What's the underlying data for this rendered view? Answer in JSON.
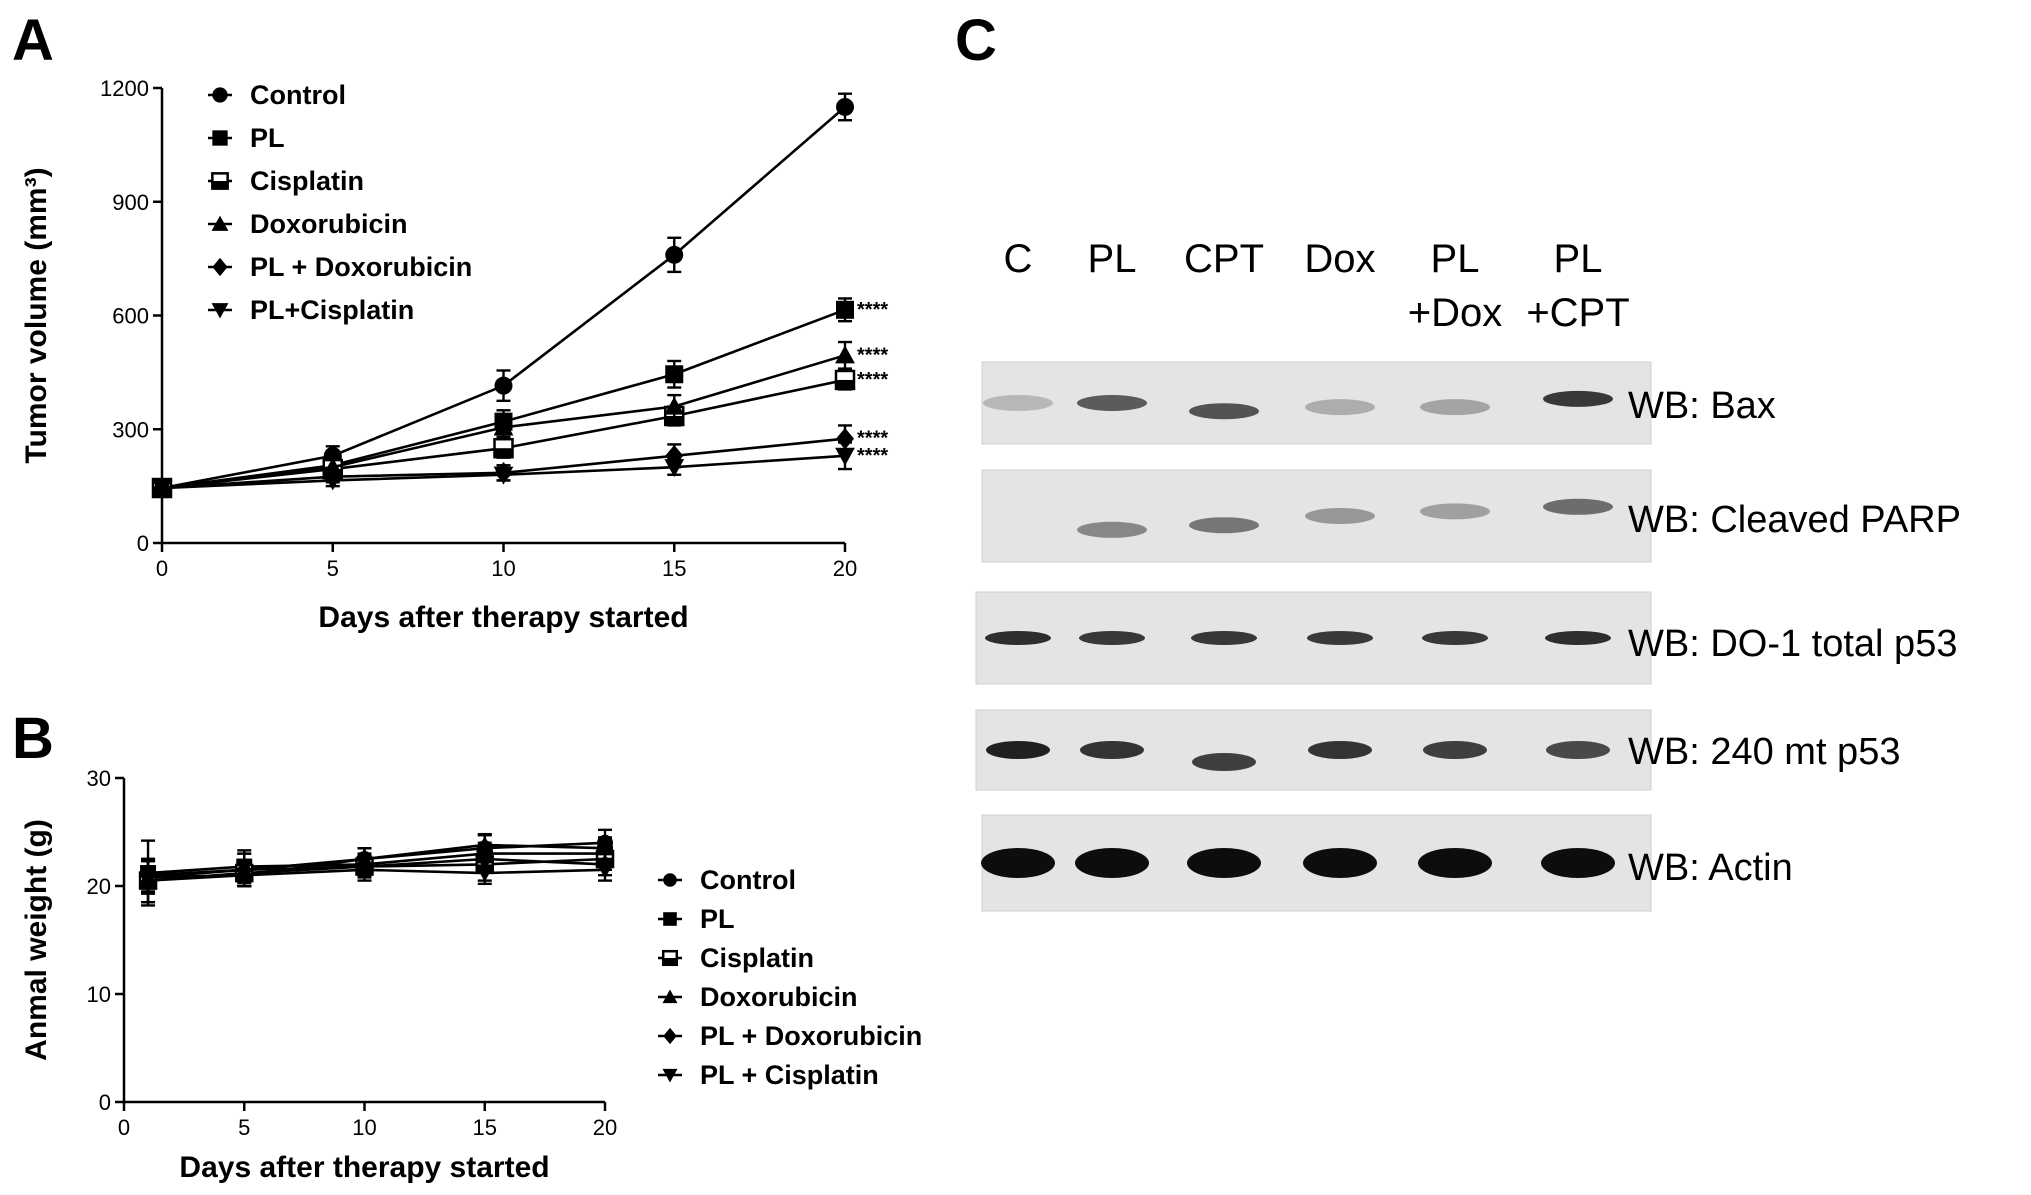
{
  "chart_data": [
    {
      "panel": "A",
      "type": "line",
      "xlabel": "Days after therapy started",
      "ylabel": "Tumor volume (mm³)",
      "xlim": [
        0,
        20
      ],
      "ylim": [
        0,
        1200
      ],
      "xticks": [
        0,
        5,
        10,
        15,
        20
      ],
      "yticks": [
        0,
        300,
        600,
        900,
        1200
      ],
      "x": [
        0,
        5,
        10,
        15,
        20
      ],
      "legend_position": "top-left",
      "series": [
        {
          "name": "Control",
          "marker": "circle",
          "values": [
            145,
            230,
            415,
            760,
            1150
          ],
          "errors": [
            15,
            25,
            40,
            45,
            35
          ],
          "significance": ""
        },
        {
          "name": "PL",
          "marker": "square",
          "values": [
            145,
            205,
            320,
            445,
            615
          ],
          "errors": [
            15,
            20,
            30,
            35,
            30
          ],
          "significance": "****"
        },
        {
          "name": "Cisplatin",
          "marker": "square-half",
          "values": [
            145,
            195,
            250,
            335,
            430
          ],
          "errors": [
            15,
            20,
            25,
            25,
            25
          ],
          "significance": "****"
        },
        {
          "name": "Doxorubicin",
          "marker": "triangle",
          "values": [
            145,
            200,
            305,
            360,
            495
          ],
          "errors": [
            15,
            20,
            25,
            30,
            35
          ],
          "significance": "****"
        },
        {
          "name": "PL + Doxorubicin",
          "marker": "diamond",
          "values": [
            145,
            175,
            185,
            230,
            275
          ],
          "errors": [
            15,
            15,
            20,
            30,
            35
          ],
          "significance": "****"
        },
        {
          "name": "PL+Cisplatin",
          "marker": "triangle-down",
          "values": [
            145,
            165,
            180,
            200,
            230
          ],
          "errors": [
            15,
            15,
            15,
            20,
            35
          ],
          "significance": "****"
        }
      ]
    },
    {
      "panel": "B",
      "type": "line",
      "xlabel": "Days after therapy started",
      "ylabel": "Anmal weight (g)",
      "xlim": [
        0,
        20
      ],
      "ylim": [
        0,
        30
      ],
      "xticks": [
        0,
        5,
        10,
        15,
        20
      ],
      "yticks": [
        0,
        10,
        20,
        30
      ],
      "x": [
        1,
        5,
        10,
        15,
        20
      ],
      "legend_position": "right",
      "series": [
        {
          "name": "Control",
          "marker": "circle",
          "values": [
            20.8,
            21.5,
            22.5,
            23.5,
            24.0
          ],
          "errors": [
            1.5,
            1.5,
            1.0,
            1.2,
            1.2
          ]
        },
        {
          "name": "PL",
          "marker": "square",
          "values": [
            21.2,
            21.8,
            22.0,
            23.0,
            23.0
          ],
          "errors": [
            3.0,
            1.5,
            1.0,
            1.0,
            1.0
          ]
        },
        {
          "name": "Cisplatin",
          "marker": "square-half",
          "values": [
            20.5,
            21.2,
            21.8,
            22.0,
            22.5
          ],
          "errors": [
            2.0,
            1.2,
            1.0,
            1.5,
            1.0
          ]
        },
        {
          "name": "Doxorubicin",
          "marker": "triangle",
          "values": [
            20.8,
            21.0,
            22.5,
            23.8,
            23.5
          ],
          "errors": [
            1.5,
            1.0,
            1.0,
            1.0,
            1.0
          ]
        },
        {
          "name": "PL + Doxorubicin",
          "marker": "diamond",
          "values": [
            21.0,
            21.5,
            21.8,
            22.5,
            22.0
          ],
          "errors": [
            1.5,
            1.5,
            1.0,
            1.0,
            1.0
          ]
        },
        {
          "name": "PL + Cisplatin",
          "marker": "triangle-down",
          "values": [
            20.5,
            21.0,
            21.5,
            21.2,
            21.5
          ],
          "errors": [
            2.0,
            1.0,
            1.0,
            1.0,
            1.0
          ]
        }
      ]
    }
  ],
  "western_blot": {
    "panel": "C",
    "lanes": [
      {
        "line1": "C",
        "line2": ""
      },
      {
        "line1": "PL",
        "line2": ""
      },
      {
        "line1": "CPT",
        "line2": ""
      },
      {
        "line1": "Dox",
        "line2": ""
      },
      {
        "line1": "PL",
        "line2": "+Dox"
      },
      {
        "line1": "PL",
        "line2": "+CPT"
      }
    ],
    "blots": [
      {
        "label": "WB: Bax",
        "intensities": [
          0.25,
          0.75,
          0.8,
          0.3,
          0.35,
          0.95
        ],
        "band_color": "#2e2e2e",
        "band_offset": [
          0,
          0,
          0.1,
          0.05,
          0.05,
          -0.05
        ]
      },
      {
        "label": "WB: Cleaved PARP",
        "intensities": [
          0.0,
          0.55,
          0.65,
          0.45,
          0.4,
          0.7
        ],
        "band_color": "#3a3a3a",
        "band_offset": [
          0,
          0.15,
          0.1,
          0,
          -0.05,
          -0.1
        ]
      },
      {
        "label": "WB: DO-1 total p53",
        "intensities": [
          0.9,
          0.85,
          0.85,
          0.85,
          0.85,
          0.9
        ],
        "band_color": "#1a1a1a",
        "band_offset": [
          0,
          0,
          0,
          0,
          0,
          0
        ]
      },
      {
        "label": "WB: 240 mt p53",
        "intensities": [
          0.95,
          0.85,
          0.8,
          0.85,
          0.8,
          0.75
        ],
        "band_color": "#151515",
        "band_offset": [
          0,
          0,
          0.15,
          0,
          0,
          0
        ]
      },
      {
        "label": "WB: Actin",
        "intensities": [
          1.0,
          1.0,
          1.0,
          1.0,
          1.0,
          1.0
        ],
        "band_color": "#0d0d0d",
        "band_offset": [
          0,
          0,
          0,
          0,
          0,
          0
        ]
      }
    ]
  },
  "panel_labels": {
    "a": "A",
    "b": "B",
    "c": "C"
  }
}
